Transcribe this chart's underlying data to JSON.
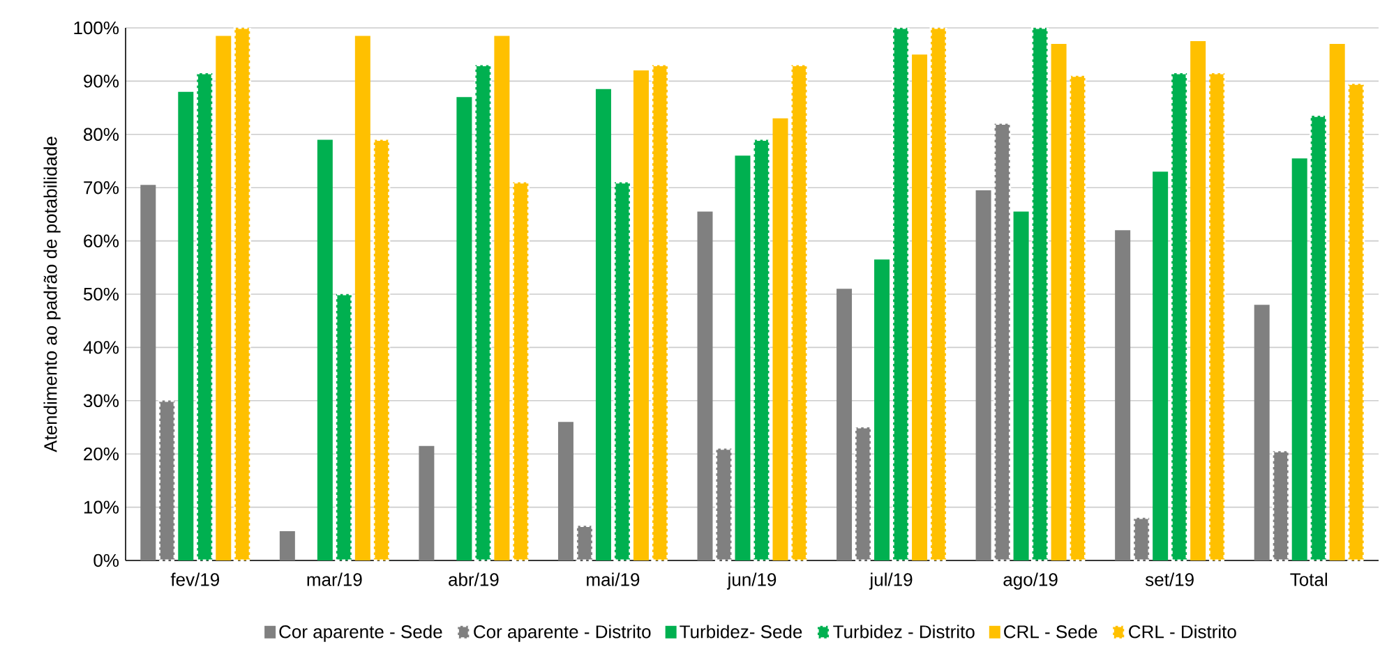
{
  "chart_data": {
    "type": "bar",
    "ylabel": "Atendimento ao padrão de potabilidade",
    "categories": [
      "fev/19",
      "mar/19",
      "abr/19",
      "mai/19",
      "jun/19",
      "jul/19",
      "ago/19",
      "set/19",
      "Total"
    ],
    "series": [
      {
        "name": "Cor aparente - Sede",
        "color": "#808080",
        "line_style": "solid",
        "values": [
          70.5,
          5.5,
          21.5,
          26,
          65.5,
          51,
          69.5,
          62,
          48
        ]
      },
      {
        "name": "Cor aparente - Distrito",
        "color": "#808080",
        "line_style": "dashed",
        "values": [
          30,
          null,
          null,
          6.5,
          21,
          25,
          82,
          8,
          20.5
        ]
      },
      {
        "name": "Turbidez- Sede",
        "color": "#00b050",
        "line_style": "solid",
        "values": [
          88,
          79,
          87,
          88.5,
          76,
          56.5,
          65.5,
          73,
          75.5
        ]
      },
      {
        "name": "Turbidez - Distrito",
        "color": "#00b050",
        "line_style": "dashed",
        "values": [
          91.5,
          50,
          93,
          71,
          79,
          100,
          100,
          91.5,
          83.5
        ]
      },
      {
        "name": "CRL - Sede",
        "color": "#ffc000",
        "line_style": "solid",
        "values": [
          98.5,
          98.5,
          98.5,
          92,
          83,
          95,
          97,
          97.5,
          97
        ]
      },
      {
        "name": "CRL - Distrito",
        "color": "#ffc000",
        "line_style": "dashed",
        "values": [
          100,
          79,
          71,
          93,
          93,
          100,
          91,
          91.5,
          89.5
        ]
      }
    ],
    "ylim": [
      0,
      100
    ],
    "yticks": [
      {
        "value": 0,
        "label": "0%"
      },
      {
        "value": 10,
        "label": "10%"
      },
      {
        "value": 20,
        "label": "20%"
      },
      {
        "value": 30,
        "label": "30%"
      },
      {
        "value": 40,
        "label": "40%"
      },
      {
        "value": 50,
        "label": "50%"
      },
      {
        "value": 60,
        "label": "60%"
      },
      {
        "value": 70,
        "label": "70%"
      },
      {
        "value": 80,
        "label": "80%"
      },
      {
        "value": 90,
        "label": "90%"
      },
      {
        "value": 100,
        "label": "100%"
      }
    ],
    "grid": "y",
    "legend": "bottom"
  }
}
